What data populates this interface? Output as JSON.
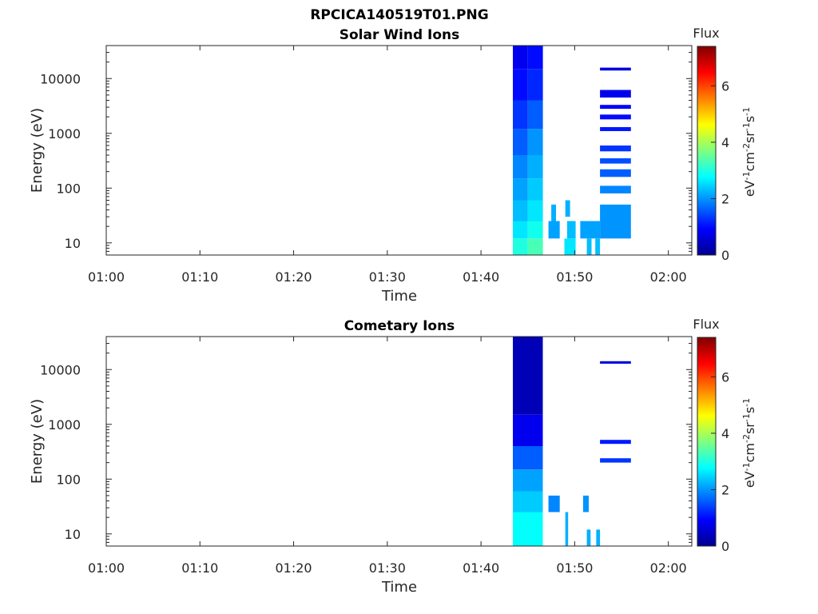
{
  "figure": {
    "title": "RPCICA140519T01.PNG"
  },
  "chart_data": [
    {
      "type": "heatmap",
      "title": "Solar Wind Ions",
      "xlabel": "Time",
      "ylabel": "Energy (eV)",
      "x_ticks": [
        "01:00",
        "01:10",
        "01:20",
        "01:30",
        "01:40",
        "01:50",
        "02:00"
      ],
      "y_ticks": [
        "10",
        "100",
        "1000",
        "10000"
      ],
      "y_scale": "log",
      "ylim": [
        6,
        40000
      ],
      "colorbar": {
        "title": "Flux",
        "label": "eV-1cm-2sr-1s-1",
        "ticks": [
          "0",
          "2",
          "4",
          "6"
        ],
        "range": [
          0,
          7.4
        ],
        "colormap": "jet"
      },
      "cells": [
        {
          "t0": 43.4,
          "t1": 45.0,
          "e0": 6,
          "e1": 12,
          "v": 3.0
        },
        {
          "t0": 45.0,
          "t1": 46.6,
          "e0": 6,
          "e1": 12,
          "v": 3.3
        },
        {
          "t0": 43.4,
          "t1": 45.0,
          "e0": 12,
          "e1": 25,
          "v": 2.6
        },
        {
          "t0": 45.0,
          "t1": 46.6,
          "e0": 12,
          "e1": 25,
          "v": 2.9
        },
        {
          "t0": 43.4,
          "t1": 45.0,
          "e0": 25,
          "e1": 60,
          "v": 2.3
        },
        {
          "t0": 45.0,
          "t1": 46.6,
          "e0": 25,
          "e1": 60,
          "v": 2.6
        },
        {
          "t0": 43.4,
          "t1": 45.0,
          "e0": 60,
          "e1": 150,
          "v": 2.1
        },
        {
          "t0": 45.0,
          "t1": 46.6,
          "e0": 60,
          "e1": 150,
          "v": 2.4
        },
        {
          "t0": 43.4,
          "t1": 45.0,
          "e0": 150,
          "e1": 400,
          "v": 1.9
        },
        {
          "t0": 45.0,
          "t1": 46.6,
          "e0": 150,
          "e1": 400,
          "v": 2.2
        },
        {
          "t0": 43.4,
          "t1": 45.0,
          "e0": 400,
          "e1": 1200,
          "v": 1.6
        },
        {
          "t0": 45.0,
          "t1": 46.6,
          "e0": 400,
          "e1": 1200,
          "v": 2.0
        },
        {
          "t0": 43.4,
          "t1": 45.0,
          "e0": 1200,
          "e1": 4000,
          "v": 1.3
        },
        {
          "t0": 45.0,
          "t1": 46.6,
          "e0": 1200,
          "e1": 4000,
          "v": 1.6
        },
        {
          "t0": 43.4,
          "t1": 45.0,
          "e0": 4000,
          "e1": 15000,
          "v": 1.0
        },
        {
          "t0": 45.0,
          "t1": 46.6,
          "e0": 4000,
          "e1": 15000,
          "v": 1.2
        },
        {
          "t0": 43.4,
          "t1": 45.0,
          "e0": 15000,
          "e1": 40000,
          "v": 0.8
        },
        {
          "t0": 45.0,
          "t1": 46.6,
          "e0": 15000,
          "e1": 40000,
          "v": 1.0
        },
        {
          "t0": 48.9,
          "t1": 50.1,
          "e0": 6,
          "e1": 12,
          "v": 2.6
        },
        {
          "t0": 51.3,
          "t1": 51.8,
          "e0": 6,
          "e1": 12,
          "v": 2.3
        },
        {
          "t0": 52.2,
          "t1": 52.7,
          "e0": 6,
          "e1": 12,
          "v": 2.3
        },
        {
          "t0": 47.2,
          "t1": 48.4,
          "e0": 12,
          "e1": 25,
          "v": 2.1
        },
        {
          "t0": 49.2,
          "t1": 50.1,
          "e0": 12,
          "e1": 25,
          "v": 2.3
        },
        {
          "t0": 50.6,
          "t1": 52.7,
          "e0": 12,
          "e1": 25,
          "v": 2.1
        },
        {
          "t0": 52.7,
          "t1": 56.0,
          "e0": 12,
          "e1": 25,
          "v": 2.0
        },
        {
          "t0": 52.7,
          "t1": 56.0,
          "e0": 25,
          "e1": 50,
          "v": 2.0
        },
        {
          "t0": 47.5,
          "t1": 48.0,
          "e0": 25,
          "e1": 50,
          "v": 2.2
        },
        {
          "t0": 49.0,
          "t1": 49.5,
          "e0": 30,
          "e1": 60,
          "v": 2.2
        },
        {
          "t0": 52.7,
          "t1": 56.0,
          "e0": 80,
          "e1": 110,
          "v": 1.9
        },
        {
          "t0": 52.7,
          "t1": 56.0,
          "e0": 160,
          "e1": 220,
          "v": 1.6
        },
        {
          "t0": 52.7,
          "t1": 56.0,
          "e0": 280,
          "e1": 350,
          "v": 1.5
        },
        {
          "t0": 52.7,
          "t1": 56.0,
          "e0": 470,
          "e1": 600,
          "v": 1.3
        },
        {
          "t0": 52.7,
          "t1": 56.0,
          "e0": 1100,
          "e1": 1300,
          "v": 1.1
        },
        {
          "t0": 52.7,
          "t1": 56.0,
          "e0": 1800,
          "e1": 2200,
          "v": 1.0
        },
        {
          "t0": 52.7,
          "t1": 56.0,
          "e0": 2800,
          "e1": 3300,
          "v": 0.9
        },
        {
          "t0": 52.7,
          "t1": 56.0,
          "e0": 4500,
          "e1": 6200,
          "v": 0.8
        },
        {
          "t0": 52.7,
          "t1": 56.0,
          "e0": 14000,
          "e1": 15800,
          "v": 0.7
        }
      ]
    },
    {
      "type": "heatmap",
      "title": "Cometary Ions",
      "xlabel": "Time",
      "ylabel": "Energy (eV)",
      "x_ticks": [
        "01:00",
        "01:10",
        "01:20",
        "01:30",
        "01:40",
        "01:50",
        "02:00"
      ],
      "y_ticks": [
        "10",
        "100",
        "1000",
        "10000"
      ],
      "y_scale": "log",
      "ylim": [
        6,
        40000
      ],
      "colorbar": {
        "title": "Flux",
        "label": "eV-1cm-2sr-1s-1",
        "ticks": [
          "0",
          "2",
          "4",
          "6"
        ],
        "range": [
          0,
          7.4
        ],
        "colormap": "jet"
      },
      "cells": [
        {
          "t0": 43.4,
          "t1": 46.6,
          "e0": 6,
          "e1": 25,
          "v": 2.8
        },
        {
          "t0": 43.4,
          "t1": 46.6,
          "e0": 25,
          "e1": 60,
          "v": 2.4
        },
        {
          "t0": 43.4,
          "t1": 46.6,
          "e0": 60,
          "e1": 150,
          "v": 2.1
        },
        {
          "t0": 43.4,
          "t1": 46.6,
          "e0": 150,
          "e1": 400,
          "v": 1.6
        },
        {
          "t0": 43.4,
          "t1": 46.6,
          "e0": 400,
          "e1": 1500,
          "v": 0.8
        },
        {
          "t0": 43.4,
          "t1": 46.6,
          "e0": 1500,
          "e1": 40000,
          "v": 0.4
        },
        {
          "t0": 49.0,
          "t1": 49.3,
          "e0": 6,
          "e1": 25,
          "v": 2.2
        },
        {
          "t0": 51.3,
          "t1": 51.7,
          "e0": 6,
          "e1": 12,
          "v": 2.2
        },
        {
          "t0": 52.3,
          "t1": 52.7,
          "e0": 6,
          "e1": 12,
          "v": 2.2
        },
        {
          "t0": 47.2,
          "t1": 48.4,
          "e0": 25,
          "e1": 50,
          "v": 1.9
        },
        {
          "t0": 50.9,
          "t1": 51.5,
          "e0": 25,
          "e1": 50,
          "v": 2.0
        },
        {
          "t0": 52.7,
          "t1": 56.0,
          "e0": 200,
          "e1": 240,
          "v": 1.3
        },
        {
          "t0": 52.7,
          "t1": 56.0,
          "e0": 440,
          "e1": 520,
          "v": 1.1
        },
        {
          "t0": 52.7,
          "t1": 56.0,
          "e0": 12800,
          "e1": 14200,
          "v": 0.7
        }
      ]
    }
  ]
}
